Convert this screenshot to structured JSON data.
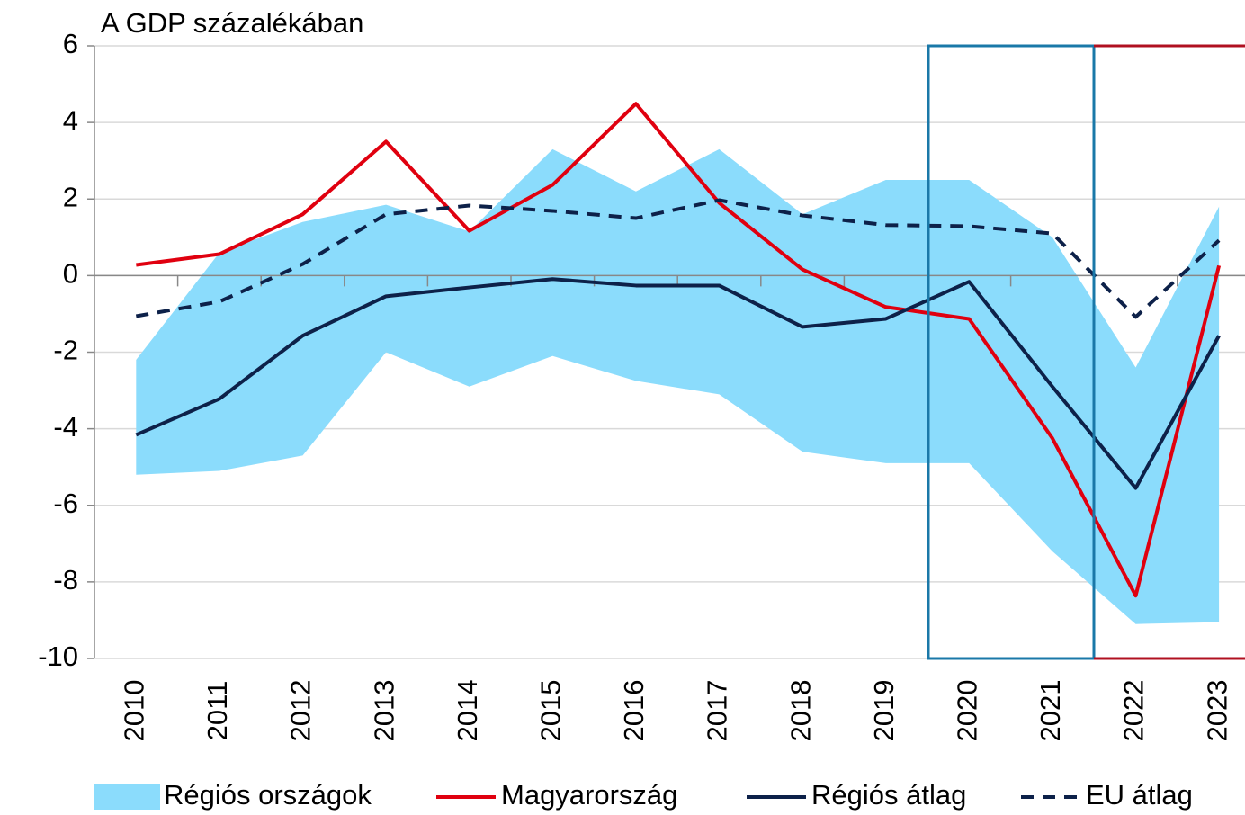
{
  "chart_data": {
    "type": "line",
    "title": "A GDP százalékában",
    "categories": [
      "2010",
      "2011",
      "2012",
      "2013",
      "2014",
      "2015",
      "2016",
      "2017",
      "2018",
      "2019",
      "2020",
      "2021",
      "2022",
      "2023"
    ],
    "band": {
      "name": "Régiós országok",
      "color": "#8bdcfc",
      "high": [
        -2.2,
        0.6,
        1.4,
        1.85,
        1.15,
        3.3,
        2.2,
        3.3,
        1.6,
        2.5,
        2.5,
        1.0,
        -2.4,
        1.8
      ],
      "low": [
        -5.2,
        -5.1,
        -4.7,
        -2.0,
        -2.9,
        -2.1,
        -2.75,
        -3.1,
        -4.6,
        -4.9,
        -4.9,
        -7.2,
        -9.1,
        -9.05
      ]
    },
    "series": [
      {
        "name": "Magyarország",
        "color": "#e0000f",
        "dash": false,
        "values": [
          0.28,
          0.56,
          1.6,
          3.5,
          1.17,
          2.37,
          4.49,
          1.9,
          0.16,
          -0.82,
          -1.13,
          -4.25,
          -8.36,
          0.26
        ]
      },
      {
        "name": "Régiós átlag",
        "color": "#0d2149",
        "dash": false,
        "values": [
          -4.16,
          -3.22,
          -1.57,
          -0.54,
          -0.31,
          -0.09,
          -0.26,
          -0.26,
          -1.34,
          -1.13,
          -0.16,
          -2.9,
          -5.55,
          -1.57
        ]
      },
      {
        "name": "EU átlag",
        "color": "#0d2149",
        "dash": true,
        "values": [
          -1.06,
          -0.68,
          0.3,
          1.6,
          1.83,
          1.69,
          1.5,
          1.97,
          1.57,
          1.32,
          1.29,
          1.1,
          -1.08,
          0.92
        ]
      }
    ],
    "ylim": [
      -10,
      6
    ],
    "yticks": [
      -10,
      -8,
      -6,
      -4,
      -2,
      0,
      2,
      4,
      6
    ],
    "grid": true
  }
}
